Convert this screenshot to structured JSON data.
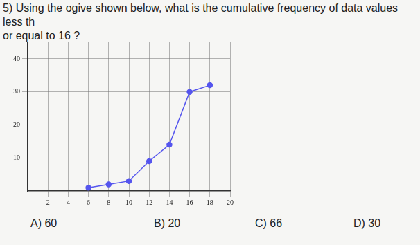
{
  "question": [
    "5) Using the ogive shown below, what is the cumulative frequency of data values less th",
    "or equal to 16 ?"
  ],
  "choices": [
    "A) 60",
    "B) 20",
    "C) 66",
    "D) 30"
  ],
  "chart_data": {
    "type": "line",
    "x": [
      6,
      8,
      10,
      12,
      14,
      16,
      18
    ],
    "values": [
      1,
      2,
      3,
      9,
      14,
      30,
      32
    ],
    "color": "#5555ee",
    "marker": "circle",
    "xlim": [
      0,
      20
    ],
    "xticks": [
      2,
      4,
      6,
      8,
      10,
      12,
      14,
      16,
      18,
      20
    ],
    "ylim": [
      0,
      45
    ],
    "yticks": [
      10,
      20,
      30,
      40
    ],
    "grid": true
  }
}
